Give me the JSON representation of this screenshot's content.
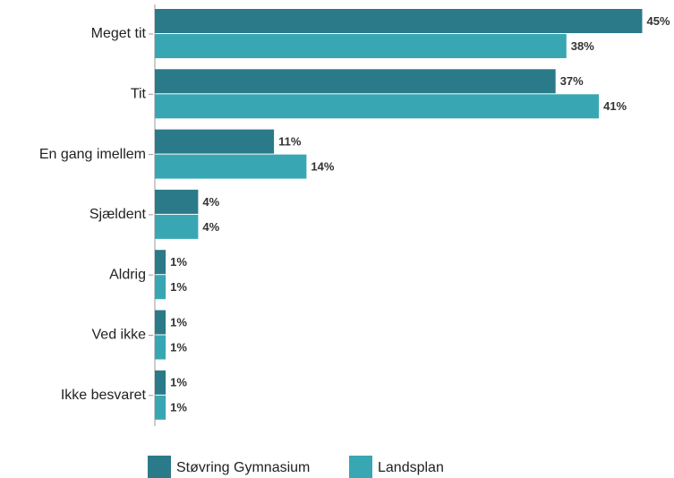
{
  "chart_data": {
    "type": "bar",
    "orientation": "horizontal",
    "categories": [
      "Meget tit",
      "Tit",
      "En gang imellem",
      "Sjældent",
      "Aldrig",
      "Ved ikke",
      "Ikke besvaret"
    ],
    "series": [
      {
        "name": "Støvring Gymnasium",
        "color": "#2b7a89",
        "values": [
          45,
          37,
          11,
          4,
          1,
          1,
          1
        ],
        "value_labels": [
          "45%",
          "37%",
          "11%",
          "4%",
          "1%",
          "1%",
          "1%"
        ]
      },
      {
        "name": "Landsplan",
        "color": "#38a7b3",
        "values": [
          38,
          41,
          14,
          4,
          1,
          1,
          1
        ],
        "value_labels": [
          "38%",
          "41%",
          "14%",
          "4%",
          "1%",
          "1%",
          "1%"
        ]
      }
    ]
  }
}
